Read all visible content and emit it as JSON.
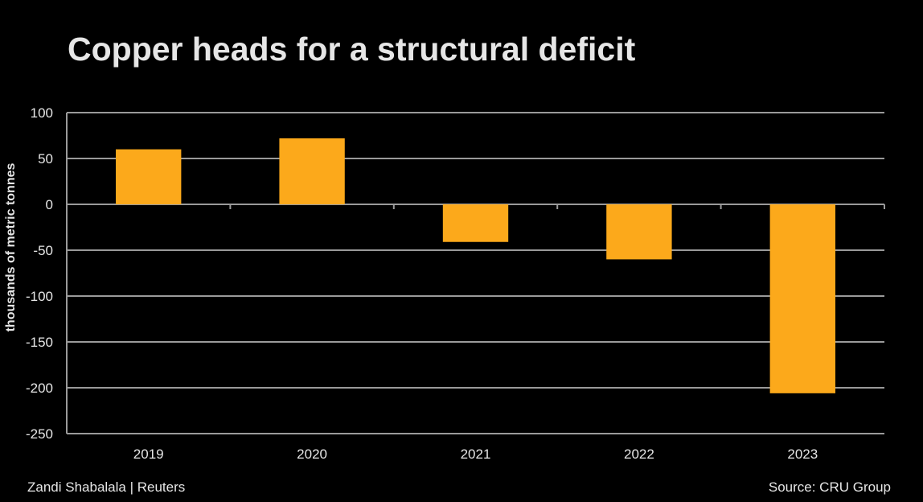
{
  "title": "Copper heads for a structural deficit",
  "credit": "Zandi Shabalala | Reuters",
  "source": "Source: CRU Group",
  "chart_data": {
    "type": "bar",
    "title": "Copper heads for a structural deficit",
    "xlabel": "",
    "ylabel": "thousands of metric tonnes",
    "categories": [
      "2019",
      "2020",
      "2021",
      "2022",
      "2023"
    ],
    "values": [
      60,
      72,
      -41,
      -60,
      -206
    ],
    "ylim": [
      -250,
      100
    ],
    "yticks": [
      100,
      50,
      0,
      -50,
      -100,
      -150,
      -200,
      -250
    ],
    "grid": true,
    "bar_color": "#fca91b",
    "background": "#000000",
    "grid_color": "#9a9a9a"
  }
}
